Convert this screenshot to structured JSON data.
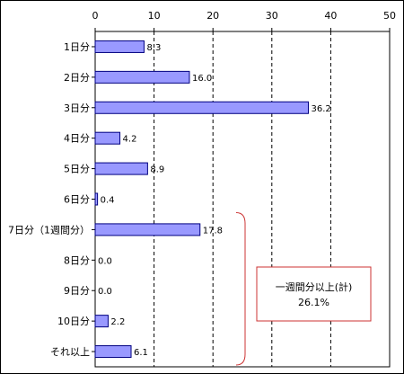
{
  "chart_data": {
    "type": "bar",
    "orientation": "horizontal",
    "categories": [
      "1日分",
      "2日分",
      "3日分",
      "4日分",
      "5日分",
      "6日分",
      "7日分（1週間分）",
      "8日分",
      "9日分",
      "10日分",
      "それ以上"
    ],
    "values": [
      8.3,
      16.0,
      36.2,
      4.2,
      8.9,
      0.4,
      17.8,
      0.0,
      0.0,
      2.2,
      6.1
    ],
    "value_labels": [
      "8.3",
      "16.0",
      "36.2",
      "4.2",
      "8.9",
      "0.4",
      "17.8",
      "0.0",
      "0.0",
      "2.2",
      "6.1"
    ],
    "xlim": [
      0,
      50
    ],
    "xticks": [
      0,
      10,
      20,
      30,
      40,
      50
    ],
    "xtick_labels": [
      "0",
      "10",
      "20",
      "30",
      "40",
      "50"
    ],
    "grid": "vertical dashed",
    "bar_color": "#9999ff",
    "bar_edge_color": "#000080",
    "annotation": {
      "line1": "一週間分以上(計)",
      "line2": "26.1%",
      "spans_categories": [
        "7日分（1週間分）",
        "8日分",
        "9日分",
        "10日分",
        "それ以上"
      ],
      "bracket_color": "#cc3333",
      "box_color": "#cc3333"
    }
  }
}
